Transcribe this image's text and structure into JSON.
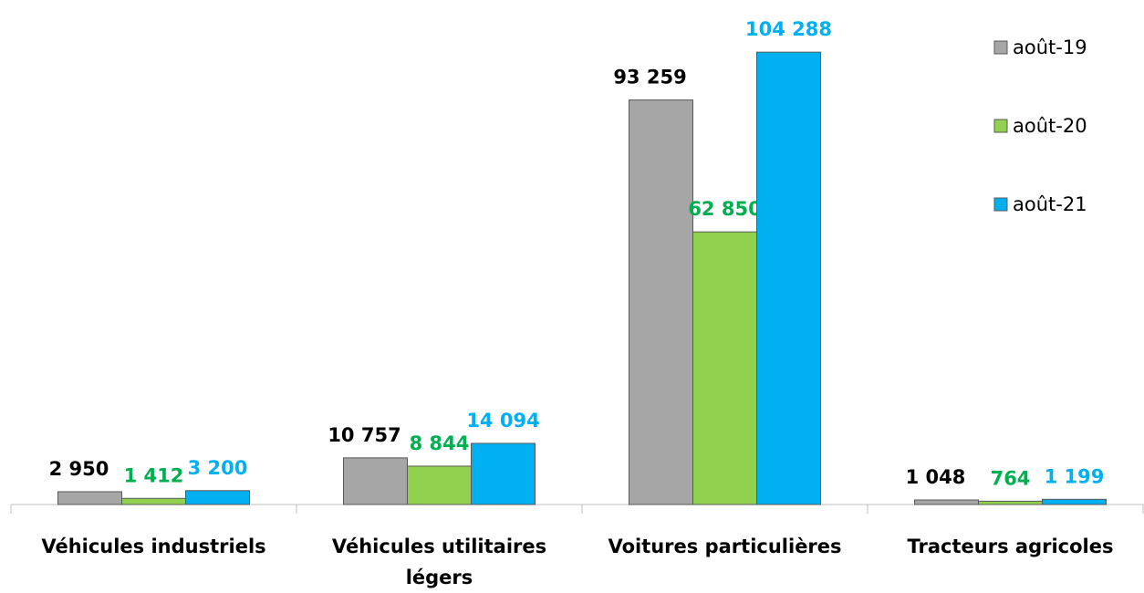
{
  "chart_data": {
    "type": "bar",
    "categories": [
      "Véhicules industriels",
      "Véhicules utilitaires légers",
      "Voitures particulières",
      "Tracteurs agricoles"
    ],
    "series": [
      {
        "name": "août-19",
        "color": "#a6a6a6",
        "label_color": "#000000",
        "values": [
          2950,
          10757,
          93259,
          1048
        ],
        "value_labels": [
          "2 950",
          "10 757",
          "93 259",
          "1 048"
        ]
      },
      {
        "name": "août-20",
        "color": "#92d050",
        "label_color": "#00b050",
        "values": [
          1412,
          8844,
          62850,
          764
        ],
        "value_labels": [
          "1 412",
          "8 844",
          "62 850",
          "764"
        ]
      },
      {
        "name": "août-21",
        "color": "#00b0f0",
        "label_color": "#00b0f0",
        "values": [
          3200,
          14094,
          104288,
          1199
        ],
        "value_labels": [
          "3 200",
          "14 094",
          "104 288",
          "1 199"
        ]
      }
    ],
    "ylim": [
      0,
      110000
    ],
    "legend": "right"
  }
}
